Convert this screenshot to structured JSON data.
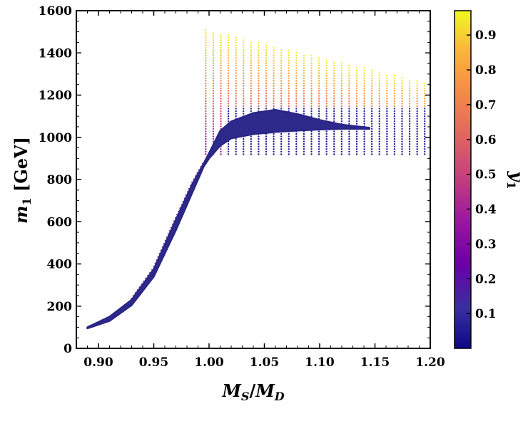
{
  "chart_data": {
    "type": "scatter",
    "title": "",
    "xlabel": {
      "italic_main": "M",
      "sub1": "S",
      "slash": "/",
      "italic_main2": "M",
      "sub2": "D"
    },
    "ylabel": {
      "italic_main": "m",
      "sub": "1",
      "unit": " [GeV]"
    },
    "colorbar_label": {
      "italic_main": "y",
      "sub": "1"
    },
    "xlim": [
      0.88,
      1.2
    ],
    "ylim": [
      0,
      1600
    ],
    "x_ticks": [
      0.9,
      0.95,
      1.0,
      1.05,
      1.1,
      1.15,
      1.2
    ],
    "x_tick_labels": [
      "0.90",
      "0.95",
      "1.00",
      "1.05",
      "1.10",
      "1.15",
      "1.20"
    ],
    "y_ticks": [
      0,
      200,
      400,
      600,
      800,
      1000,
      1200,
      1400,
      1600
    ],
    "y_tick_labels": [
      "0",
      "200",
      "400",
      "600",
      "800",
      "1000",
      "1200",
      "1400",
      "1600"
    ],
    "colorbar_range": [
      0.0,
      0.97
    ],
    "colorbar_ticks": [
      0.1,
      0.2,
      0.3,
      0.4,
      0.5,
      0.6,
      0.7,
      0.8,
      0.9
    ],
    "colorbar_tick_labels": [
      "0.1",
      "0.2",
      "0.3",
      "0.4",
      "0.5",
      "0.6",
      "0.7",
      "0.8",
      "0.9"
    ],
    "colormap": "plasma",
    "colors": {
      "low": "#3b2f8f",
      "mid": "#c8408a",
      "high": "#f7e73f"
    },
    "grid": false,
    "band_lower": [
      [
        0.89,
        95
      ],
      [
        0.91,
        130
      ],
      [
        0.93,
        205
      ],
      [
        0.95,
        340
      ],
      [
        0.97,
        560
      ],
      [
        0.985,
        740
      ],
      [
        0.995,
        860
      ],
      [
        1.0,
        900
      ],
      [
        1.01,
        960
      ],
      [
        1.02,
        995
      ],
      [
        1.04,
        1015
      ],
      [
        1.06,
        1025
      ],
      [
        1.08,
        1032
      ],
      [
        1.1,
        1037
      ],
      [
        1.12,
        1040
      ],
      [
        1.145,
        1040
      ]
    ],
    "band_upper": [
      [
        0.89,
        100
      ],
      [
        0.91,
        150
      ],
      [
        0.93,
        230
      ],
      [
        0.95,
        375
      ],
      [
        0.97,
        610
      ],
      [
        0.985,
        780
      ],
      [
        0.995,
        875
      ],
      [
        1.0,
        925
      ],
      [
        1.01,
        1030
      ],
      [
        1.02,
        1075
      ],
      [
        1.04,
        1115
      ],
      [
        1.06,
        1130
      ],
      [
        1.08,
        1110
      ],
      [
        1.1,
        1082
      ],
      [
        1.12,
        1060
      ],
      [
        1.145,
        1045
      ]
    ],
    "vertical_scan": {
      "x_start": 0.997,
      "x_end": 1.195,
      "columns": 30,
      "y_top_start": 1510,
      "y_top_end": 1260,
      "y_bottom": 920,
      "inner_level": 1140
    }
  }
}
